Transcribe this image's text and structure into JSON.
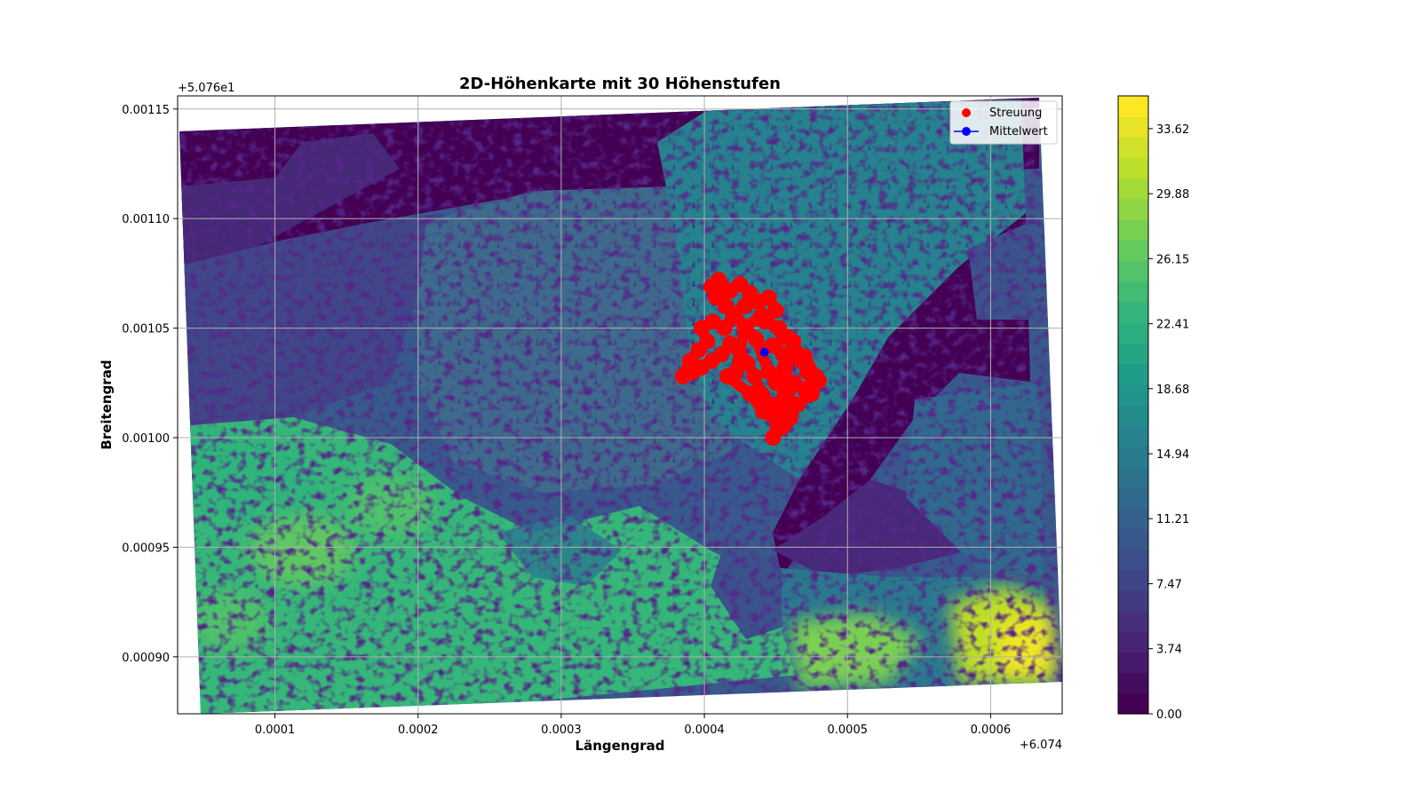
{
  "chart_data": {
    "type": "heatmap",
    "title": "2D-Höhenkarte mit 30 Höhenstufen",
    "xlabel": "Längengrad",
    "ylabel": "Breitengrad",
    "x_offset_label": "+6.074",
    "y_offset_label": "+5.076e1",
    "xlim": [
      3.2e-05,
      0.00065
    ],
    "ylim": [
      0.000874,
      0.001156
    ],
    "x_ticks": [
      0.0001,
      0.0002,
      0.0003,
      0.0004,
      0.0005,
      0.0006
    ],
    "x_tick_labels": [
      "0.0001",
      "0.0002",
      "0.0003",
      "0.0004",
      "0.0005",
      "0.0006"
    ],
    "y_ticks": [
      0.0009,
      0.00095,
      0.001,
      0.00105,
      0.0011,
      0.00115
    ],
    "y_tick_labels": [
      "0.00090",
      "0.00095",
      "0.00100",
      "0.00105",
      "0.00110",
      "0.00115"
    ],
    "grid": true,
    "colormap": "viridis",
    "levels": 30,
    "colorbar_range": [
      0.0,
      35.5
    ],
    "colorbar_ticks": [
      0.0,
      3.74,
      7.47,
      11.21,
      14.94,
      18.68,
      22.41,
      26.15,
      29.88,
      33.62
    ],
    "colorbar_tick_labels": [
      "0.00",
      "3.74",
      "7.47",
      "11.21",
      "14.94",
      "18.68",
      "22.41",
      "26.15",
      "29.88",
      "33.62"
    ],
    "series": [
      {
        "name": "Streuung",
        "kind": "scatter",
        "color": "#ff0000",
        "points": [
          [
            0.00041,
            0.001072
          ],
          [
            0.000418,
            0.001067
          ],
          [
            0.000425,
            0.00107
          ],
          [
            0.000432,
            0.001066
          ],
          [
            0.000428,
            0.00106
          ],
          [
            0.000438,
            0.001062
          ],
          [
            0.000445,
            0.001064
          ],
          [
            0.00045,
            0.001058
          ],
          [
            0.000442,
            0.001053
          ],
          [
            0.000452,
            0.00105
          ],
          [
            0.000458,
            0.001046
          ],
          [
            0.000447,
            0.001042
          ],
          [
            0.000455,
            0.001038
          ],
          [
            0.000462,
            0.00104
          ],
          [
            0.000468,
            0.001035
          ],
          [
            0.000472,
            0.00103
          ],
          [
            0.000478,
            0.001028
          ],
          [
            0.00047,
            0.001022
          ],
          [
            0.000463,
            0.001025
          ],
          [
            0.000458,
            0.001018
          ],
          [
            0.000452,
            0.001012
          ],
          [
            0.000447,
            0.001015
          ],
          [
            0.00044,
            0.00102
          ],
          [
            0.000435,
            0.001028
          ],
          [
            0.00043,
            0.001034
          ],
          [
            0.000424,
            0.00104
          ],
          [
            0.000418,
            0.001043
          ],
          [
            0.000412,
            0.001038
          ],
          [
            0.000405,
            0.001035
          ],
          [
            0.000398,
            0.001032
          ],
          [
            0.000392,
            0.00103
          ],
          [
            0.000385,
            0.001028
          ],
          [
            0.00039,
            0.001035
          ],
          [
            0.000396,
            0.00104
          ],
          [
            0.000402,
            0.001044
          ],
          [
            0.000398,
            0.00105
          ],
          [
            0.000406,
            0.001053
          ],
          [
            0.000414,
            0.00105
          ],
          [
            0.00042,
            0.001055
          ],
          [
            0.000415,
            0.00106
          ],
          [
            0.000408,
            0.001064
          ],
          [
            0.000405,
            0.001069
          ],
          [
            0.000436,
            0.001045
          ],
          [
            0.000445,
            0.00103
          ],
          [
            0.00045,
            0.001025
          ],
          [
            0.000456,
            0.001032
          ],
          [
            0.00046,
            0.001009
          ],
          [
            0.000465,
            0.001015
          ],
          [
            0.000475,
            0.00102
          ],
          [
            0.00048,
            0.001026
          ],
          [
            0.00047,
            0.001037
          ],
          [
            0.00044,
            0.001056
          ],
          [
            0.000428,
            0.00105
          ],
          [
            0.000422,
            0.00103
          ],
          [
            0.000416,
            0.001028
          ],
          [
            0.000432,
            0.00102
          ],
          [
            0.000441,
            0.001012
          ],
          [
            0.000455,
            0.001005
          ],
          [
            0.000448,
            0.001
          ],
          [
            0.000462,
            0.001044
          ]
        ]
      },
      {
        "name": "Mittelwert",
        "kind": "point",
        "color": "#0000ff",
        "points": [
          [
            0.000442,
            0.001039
          ]
        ]
      }
    ]
  }
}
